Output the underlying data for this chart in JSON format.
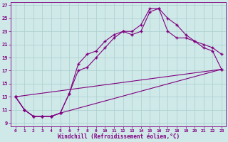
{
  "xlabel": "Windchill (Refroidissement éolien,°C)",
  "bg_color": "#cfe8e8",
  "line_color": "#800080",
  "grid_color": "#b8d8d8",
  "xlim": [
    -0.5,
    23.5
  ],
  "ylim": [
    8.5,
    27.5
  ],
  "xticks": [
    0,
    1,
    2,
    3,
    4,
    5,
    6,
    7,
    8,
    9,
    10,
    11,
    12,
    13,
    14,
    15,
    16,
    17,
    18,
    19,
    20,
    21,
    22,
    23
  ],
  "yticks": [
    9,
    11,
    13,
    15,
    17,
    19,
    21,
    23,
    25,
    27
  ],
  "line1_x": [
    0,
    1,
    2,
    3,
    4,
    5,
    6,
    7,
    8,
    9,
    10,
    11,
    12,
    13,
    14,
    15,
    16,
    17,
    18,
    19,
    20,
    21,
    22,
    23
  ],
  "line1_y": [
    13,
    11,
    10,
    10,
    10,
    10.5,
    13.5,
    18,
    19.5,
    20,
    21.5,
    22.5,
    23,
    23,
    24,
    26.5,
    26.5,
    25,
    24,
    22.5,
    21.5,
    21,
    20.5,
    19.5
  ],
  "line2_x": [
    0,
    1,
    2,
    3,
    4,
    5,
    6,
    7,
    8,
    9,
    10,
    11,
    12,
    13,
    14,
    15,
    16,
    17,
    18,
    19,
    20,
    21,
    22,
    23
  ],
  "line2_y": [
    13,
    11,
    10,
    10,
    10,
    10.5,
    13.5,
    17,
    17.5,
    19,
    20.5,
    22,
    23,
    22.5,
    23,
    26,
    26.5,
    23,
    22,
    22,
    21.5,
    20.5,
    20,
    17.2
  ],
  "line3_x": [
    0,
    1,
    2,
    3,
    4,
    5,
    23
  ],
  "line3_y": [
    13,
    11,
    10,
    10,
    10,
    10.5,
    17.2
  ],
  "line4_x": [
    0,
    23
  ],
  "line4_y": [
    13,
    17.2
  ]
}
